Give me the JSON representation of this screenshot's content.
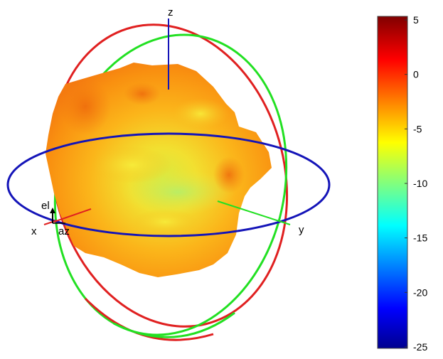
{
  "chart_data": {
    "type": "3d-radiation-pattern",
    "axes": {
      "x_label": "x",
      "y_label": "y",
      "z_label": "z",
      "azimuth_label": "az",
      "elevation_label": "el"
    },
    "colorbar": {
      "range": [
        -25,
        5
      ],
      "ticks": [
        5,
        0,
        -5,
        -10,
        -15,
        -20,
        -25
      ],
      "tick_labels": [
        "5",
        "0",
        "-5",
        "-10",
        "-15",
        "-20",
        "-25"
      ],
      "colormap": "jet"
    },
    "reference_circles": [
      {
        "plane": "xy",
        "color": "#1010c0"
      },
      {
        "plane": "xz",
        "color": "#e02020"
      },
      {
        "plane": "yz",
        "color": "#20e020"
      }
    ],
    "axis_colors": {
      "x": "#e02020",
      "y": "#20e020",
      "z": "#1010c0"
    },
    "pattern_value_range_shown": [
      -10,
      0
    ]
  }
}
